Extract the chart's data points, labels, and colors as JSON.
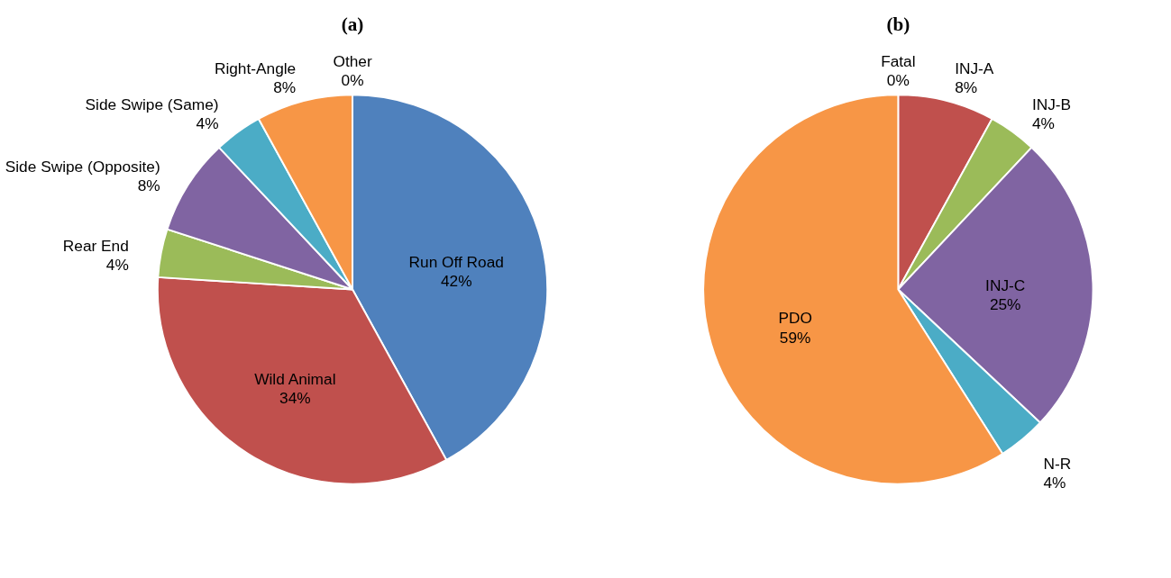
{
  "chart_data": [
    {
      "type": "pie",
      "title": "(a)",
      "categories": [
        "Run Off Road",
        "Wild Animal",
        "Rear End",
        "Side Swipe (Opposite)",
        "Side Swipe (Same)",
        "Right-Angle",
        "Other"
      ],
      "values": [
        42,
        34,
        4,
        8,
        4,
        8,
        0
      ],
      "value_labels": [
        "42%",
        "34%",
        "4%",
        "8%",
        "4%",
        "8%",
        "0%"
      ],
      "colors": [
        "#4f81bd",
        "#c0504d",
        "#9bbb59",
        "#8064a2",
        "#4bacc6",
        "#f79646",
        "#7f7f7f"
      ]
    },
    {
      "type": "pie",
      "title": "(b)",
      "categories": [
        "Fatal",
        "INJ-A",
        "INJ-B",
        "INJ-C",
        "N-R",
        "PDO"
      ],
      "values": [
        0,
        8,
        4,
        25,
        4,
        59
      ],
      "value_labels": [
        "0%",
        "8%",
        "4%",
        "25%",
        "4%",
        "59%"
      ],
      "colors": [
        "#1f497d",
        "#c0504d",
        "#9bbb59",
        "#8064a2",
        "#4bacc6",
        "#f79646"
      ]
    }
  ]
}
